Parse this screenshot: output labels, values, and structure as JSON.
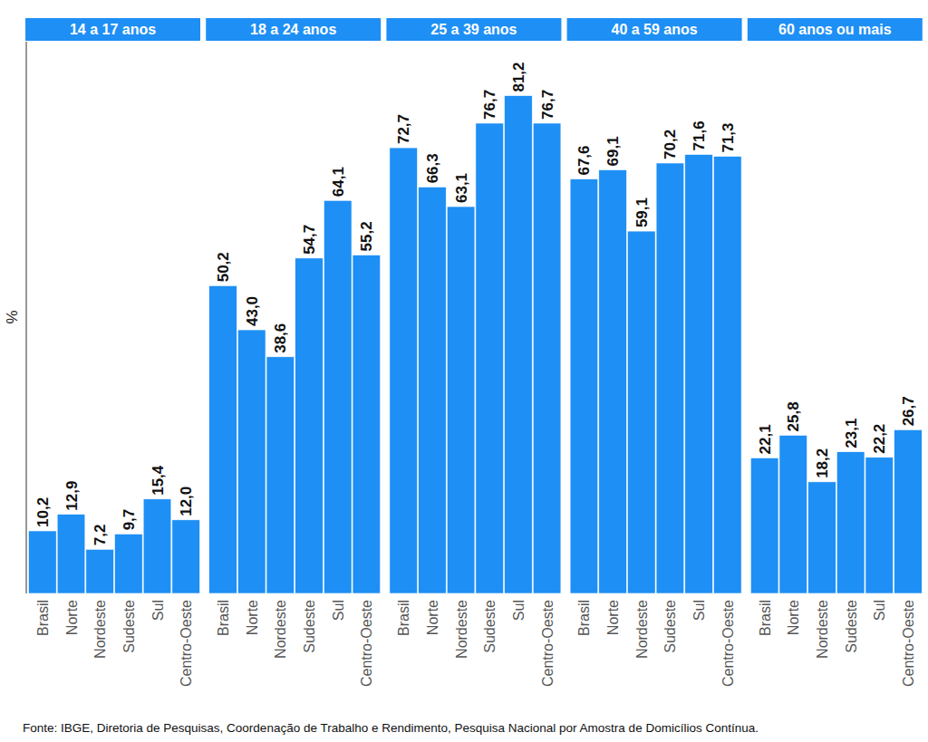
{
  "chart_data": [
    {
      "type": "bar",
      "title": "14 a 17 anos",
      "categories": [
        "Brasil",
        "Norte",
        "Nordeste",
        "Sudeste",
        "Sul",
        "Centro-Oeste"
      ],
      "values": [
        10.2,
        12.9,
        7.2,
        9.7,
        15.4,
        12.0
      ],
      "value_labels": [
        "10,2",
        "12,9",
        "7,2",
        "9,7",
        "15,4",
        "12,0"
      ],
      "color": "#1e8ff5",
      "ylim": [
        0,
        90
      ],
      "data_labels": true,
      "tick_labels": "x"
    },
    {
      "type": "bar",
      "title": "18 a 24 anos",
      "categories": [
        "Brasil",
        "Norte",
        "Nordeste",
        "Sudeste",
        "Sul",
        "Centro-Oeste"
      ],
      "values": [
        50.2,
        43.0,
        38.6,
        54.7,
        64.1,
        55.2
      ],
      "value_labels": [
        "50,2",
        "43,0",
        "38,6",
        "54,7",
        "64,1",
        "55,2"
      ],
      "color": "#1e8ff5",
      "ylim": [
        0,
        90
      ],
      "data_labels": true,
      "tick_labels": "x"
    },
    {
      "type": "bar",
      "title": "25 a 39 anos",
      "categories": [
        "Brasil",
        "Norte",
        "Nordeste",
        "Sudeste",
        "Sul",
        "Centro-Oeste"
      ],
      "values": [
        72.7,
        66.3,
        63.1,
        76.7,
        81.2,
        76.7
      ],
      "value_labels": [
        "72,7",
        "66,3",
        "63,1",
        "76,7",
        "81,2",
        "76,7"
      ],
      "color": "#1e8ff5",
      "ylim": [
        0,
        90
      ],
      "data_labels": true,
      "tick_labels": "x"
    },
    {
      "type": "bar",
      "title": "40 a 59 anos",
      "categories": [
        "Brasil",
        "Norte",
        "Nordeste",
        "Sudeste",
        "Sul",
        "Centro-Oeste"
      ],
      "values": [
        67.6,
        69.1,
        59.1,
        70.2,
        71.6,
        71.3
      ],
      "value_labels": [
        "67,6",
        "69,1",
        "59,1",
        "70,2",
        "71,6",
        "71,3"
      ],
      "color": "#1e8ff5",
      "ylim": [
        0,
        90
      ],
      "data_labels": true,
      "tick_labels": "x"
    },
    {
      "type": "bar",
      "title": "60 anos ou mais",
      "categories": [
        "Brasil",
        "Norte",
        "Nordeste",
        "Sudeste",
        "Sul",
        "Centro-Oeste"
      ],
      "values": [
        22.1,
        25.8,
        18.2,
        23.1,
        22.2,
        26.7
      ],
      "value_labels": [
        "22,1",
        "25,8",
        "18,2",
        "23,1",
        "22,2",
        "26,7"
      ],
      "color": "#1e8ff5",
      "ylim": [
        0,
        90
      ],
      "data_labels": true,
      "tick_labels": "x"
    }
  ],
  "ylabel": "%",
  "source": "Fonte: IBGE, Diretoria de Pesquisas, Coordenação de Trabalho e Rendimento, Pesquisa Nacional por Amostra de Domicílios Contínua."
}
